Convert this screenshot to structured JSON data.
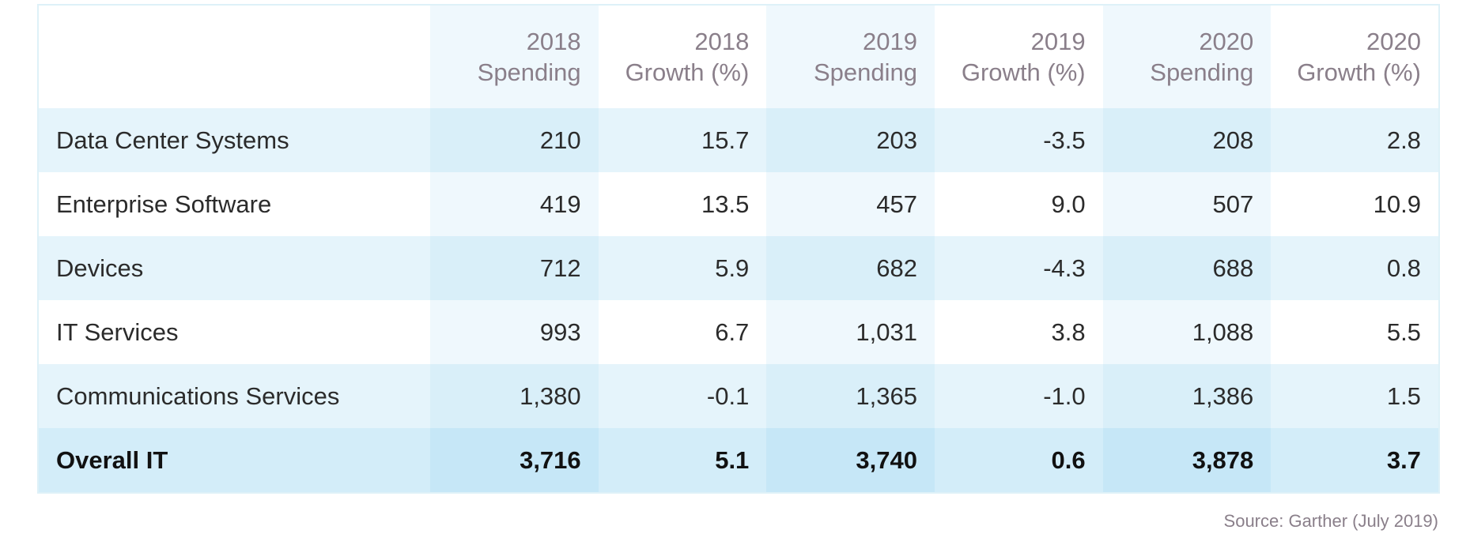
{
  "chart_data": {
    "type": "table",
    "columns": [
      {
        "line1": "",
        "line2": ""
      },
      {
        "line1": "2018",
        "line2": "Spending"
      },
      {
        "line1": "2018",
        "line2": "Growth (%)"
      },
      {
        "line1": "2019",
        "line2": "Spending"
      },
      {
        "line1": "2019",
        "line2": "Growth (%)"
      },
      {
        "line1": "2020",
        "line2": "Spending"
      },
      {
        "line1": "2020",
        "line2": "Growth (%)"
      }
    ],
    "rows": [
      {
        "label": "Data Center Systems",
        "values": [
          "210",
          "15.7",
          "203",
          "-3.5",
          "208",
          "2.8"
        ]
      },
      {
        "label": "Enterprise Software",
        "values": [
          "419",
          "13.5",
          "457",
          "9.0",
          "507",
          "10.9"
        ]
      },
      {
        "label": "Devices",
        "values": [
          "712",
          "5.9",
          "682",
          "-4.3",
          "688",
          "0.8"
        ]
      },
      {
        "label": "IT Services",
        "values": [
          "993",
          "6.7",
          "1,031",
          "3.8",
          "1,088",
          "5.5"
        ]
      },
      {
        "label": "Communications Services",
        "values": [
          "1,380",
          "-0.1",
          "1,365",
          "-1.0",
          "1,386",
          "1.5"
        ]
      },
      {
        "label": "Overall IT",
        "values": [
          "3,716",
          "5.1",
          "3,740",
          "0.6",
          "3,878",
          "3.7"
        ],
        "total": true
      }
    ],
    "source": "Source: Garther (July 2019)"
  },
  "colors": {
    "header_text": "#8a7f8a",
    "body_text": "#2b2b2b",
    "band_light_blue": "#e5f4fb",
    "band_highlight": "#d9eff9",
    "total_row": "#d3edf9",
    "border": "#def1f8"
  }
}
